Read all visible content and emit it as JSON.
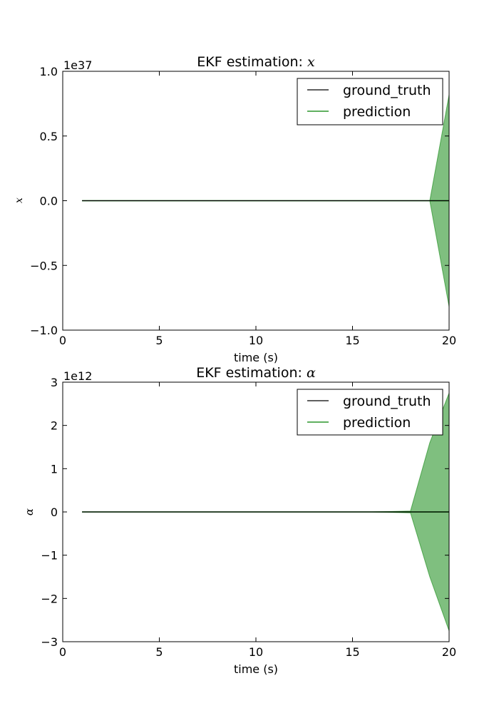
{
  "chart_data": [
    {
      "type": "line",
      "title_prefix": "EKF estimation: ",
      "title_symbol": "x",
      "xlabel": "time (s)",
      "ylabel": "x",
      "offset_label": "1e37",
      "xlim": [
        0,
        20
      ],
      "ylim": [
        -1.0,
        1.0
      ],
      "x_ticks": [
        "0",
        "5",
        "10",
        "15",
        "20"
      ],
      "y_ticks": [
        "1.0",
        "0.5",
        "0.0",
        "−0.5",
        "−1.0"
      ],
      "legend_position": "upper-right",
      "colors": {
        "ground_truth": "#000000",
        "prediction": "#008000",
        "band": "#008000"
      },
      "series": [
        {
          "name": "ground_truth",
          "x": [
            1,
            18,
            19,
            20
          ],
          "y": [
            0,
            0,
            0,
            0
          ]
        },
        {
          "name": "prediction",
          "x": [
            1,
            18,
            19,
            20
          ],
          "y": [
            0,
            0,
            0,
            0
          ]
        }
      ],
      "band": {
        "x": [
          1,
          18,
          19,
          20
        ],
        "upper": [
          0,
          0,
          0,
          0.82
        ],
        "lower": [
          0,
          0,
          0,
          -0.82
        ]
      }
    },
    {
      "type": "line",
      "title_prefix": "EKF estimation: ",
      "title_symbol": "α",
      "xlabel": "time (s)",
      "ylabel": "α",
      "offset_label": "1e12",
      "xlim": [
        0,
        20
      ],
      "ylim": [
        -3,
        3
      ],
      "x_ticks": [
        "0",
        "5",
        "10",
        "15",
        "20"
      ],
      "y_ticks": [
        "3",
        "2",
        "1",
        "0",
        "−1",
        "−2",
        "−3"
      ],
      "legend_position": "upper-right",
      "colors": {
        "ground_truth": "#000000",
        "prediction": "#008000",
        "band": "#008000"
      },
      "series": [
        {
          "name": "ground_truth",
          "x": [
            1,
            16,
            17,
            18,
            19,
            20
          ],
          "y": [
            0,
            0,
            0,
            0,
            0,
            0
          ]
        },
        {
          "name": "prediction",
          "x": [
            1,
            16,
            17,
            18,
            19,
            20
          ],
          "y": [
            0,
            0,
            0,
            0,
            0,
            0
          ]
        }
      ],
      "band": {
        "x": [
          1,
          16,
          17,
          18,
          19,
          20
        ],
        "upper": [
          0,
          0,
          0.01,
          0.02,
          1.6,
          2.75
        ],
        "lower": [
          0,
          0,
          -0.01,
          -0.02,
          -1.5,
          -2.75
        ]
      }
    }
  ]
}
